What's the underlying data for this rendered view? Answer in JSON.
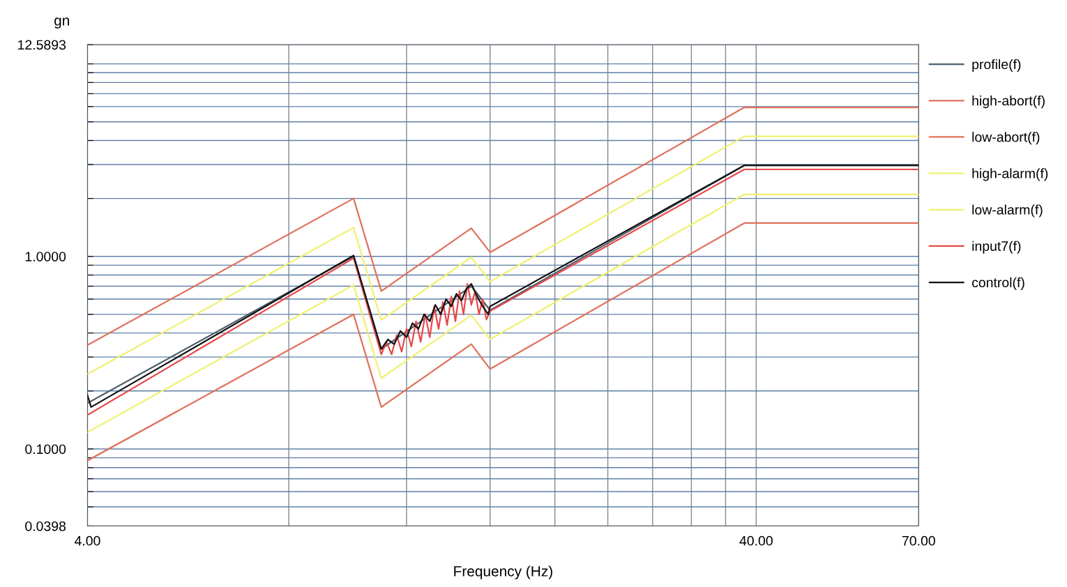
{
  "chart_data": {
    "type": "line",
    "xlabel": "Frequency (Hz)",
    "ylabel": "gn",
    "log": "xy",
    "grid": true,
    "legend": "right",
    "marker": "none",
    "line_style": "solid",
    "xlim": [
      4,
      70
    ],
    "ylim": [
      0.0398,
      12.5893
    ],
    "xticks": [
      {
        "value": 4,
        "label": "4.00"
      },
      {
        "value": 8,
        "label": null
      },
      {
        "value": 12,
        "label": null
      },
      {
        "value": 16,
        "label": null
      },
      {
        "value": 20,
        "label": null
      },
      {
        "value": 24,
        "label": null
      },
      {
        "value": 28,
        "label": null
      },
      {
        "value": 32,
        "label": null
      },
      {
        "value": 36,
        "label": null
      },
      {
        "value": 40,
        "label": "40.00"
      },
      {
        "value": 70,
        "label": "70.00"
      }
    ],
    "yticks": [
      {
        "value": 0.0398,
        "label": "0.0398"
      },
      {
        "value": 0.05,
        "label": null
      },
      {
        "value": 0.06,
        "label": null
      },
      {
        "value": 0.07,
        "label": null
      },
      {
        "value": 0.08,
        "label": null
      },
      {
        "value": 0.09,
        "label": null
      },
      {
        "value": 0.1,
        "label": "0.1000"
      },
      {
        "value": 0.2,
        "label": null
      },
      {
        "value": 0.3,
        "label": null
      },
      {
        "value": 0.4,
        "label": null
      },
      {
        "value": 0.5,
        "label": null
      },
      {
        "value": 0.6,
        "label": null
      },
      {
        "value": 0.7,
        "label": null
      },
      {
        "value": 0.8,
        "label": null
      },
      {
        "value": 0.9,
        "label": null
      },
      {
        "value": 1,
        "label": "1.0000"
      },
      {
        "value": 2,
        "label": null
      },
      {
        "value": 3,
        "label": null
      },
      {
        "value": 4,
        "label": null
      },
      {
        "value": 5,
        "label": null
      },
      {
        "value": 6,
        "label": null
      },
      {
        "value": 7,
        "label": null
      },
      {
        "value": 8,
        "label": null
      },
      {
        "value": 9,
        "label": null
      },
      {
        "value": 10,
        "label": null
      },
      {
        "value": 12.5893,
        "label": "12.5893"
      }
    ],
    "series": [
      {
        "name": "profile(f)",
        "color": "#4b5f6b",
        "x": [
          4,
          10,
          11,
          15,
          16,
          38.4,
          70
        ],
        "values": [
          0.173,
          1.0,
          0.33,
          0.7,
          0.525,
          2.97,
          2.97
        ]
      },
      {
        "name": "high-abort(f)",
        "color": "#e0705a",
        "x": [
          4,
          10,
          11,
          15,
          16,
          38.4,
          70
        ],
        "values": [
          0.346,
          2.0,
          0.66,
          1.4,
          1.05,
          5.94,
          5.94
        ]
      },
      {
        "name": "low-abort(f)",
        "color": "#e0705a",
        "x": [
          4,
          10,
          11,
          15,
          16,
          38.4,
          70
        ],
        "values": [
          0.087,
          0.5,
          0.165,
          0.35,
          0.26,
          1.49,
          1.49
        ]
      },
      {
        "name": "high-alarm(f)",
        "color": "#f0f070",
        "x": [
          4,
          10,
          11,
          15,
          16,
          38.4,
          70
        ],
        "values": [
          0.245,
          1.41,
          0.467,
          0.99,
          0.74,
          4.2,
          4.2
        ]
      },
      {
        "name": "low-alarm(f)",
        "color": "#f0f070",
        "x": [
          4,
          10,
          11,
          15,
          16,
          38.4,
          70
        ],
        "values": [
          0.122,
          0.71,
          0.233,
          0.495,
          0.371,
          2.1,
          2.1
        ]
      },
      {
        "name": "input7(f)",
        "color": "#e84848",
        "x": [
          4,
          10,
          11,
          11.2,
          11.4,
          11.6,
          11.8,
          12,
          12.2,
          12.4,
          12.6,
          12.8,
          13,
          13.2,
          13.4,
          13.6,
          13.8,
          14,
          14.2,
          14.4,
          14.6,
          14.8,
          15,
          15.2,
          15.4,
          15.6,
          15.8,
          16,
          38.4,
          70
        ],
        "values": [
          0.15,
          0.98,
          0.31,
          0.36,
          0.31,
          0.39,
          0.32,
          0.42,
          0.34,
          0.46,
          0.36,
          0.5,
          0.38,
          0.55,
          0.42,
          0.58,
          0.44,
          0.62,
          0.46,
          0.66,
          0.5,
          0.72,
          0.56,
          0.66,
          0.5,
          0.6,
          0.47,
          0.52,
          2.83,
          2.83
        ]
      },
      {
        "name": "control(f)",
        "color": "#111111",
        "x": [
          4,
          4.05,
          10,
          11,
          11.25,
          11.5,
          11.75,
          12,
          12.25,
          12.5,
          12.75,
          13,
          13.25,
          13.5,
          13.75,
          14,
          14.25,
          14.5,
          14.75,
          15,
          15.3,
          15.6,
          15.9,
          16,
          38.4,
          70
        ],
        "values": [
          0.19,
          0.165,
          1.01,
          0.33,
          0.37,
          0.35,
          0.41,
          0.38,
          0.45,
          0.42,
          0.5,
          0.46,
          0.56,
          0.5,
          0.6,
          0.55,
          0.64,
          0.59,
          0.68,
          0.72,
          0.62,
          0.55,
          0.5,
          0.55,
          2.97,
          2.97
        ]
      }
    ]
  }
}
